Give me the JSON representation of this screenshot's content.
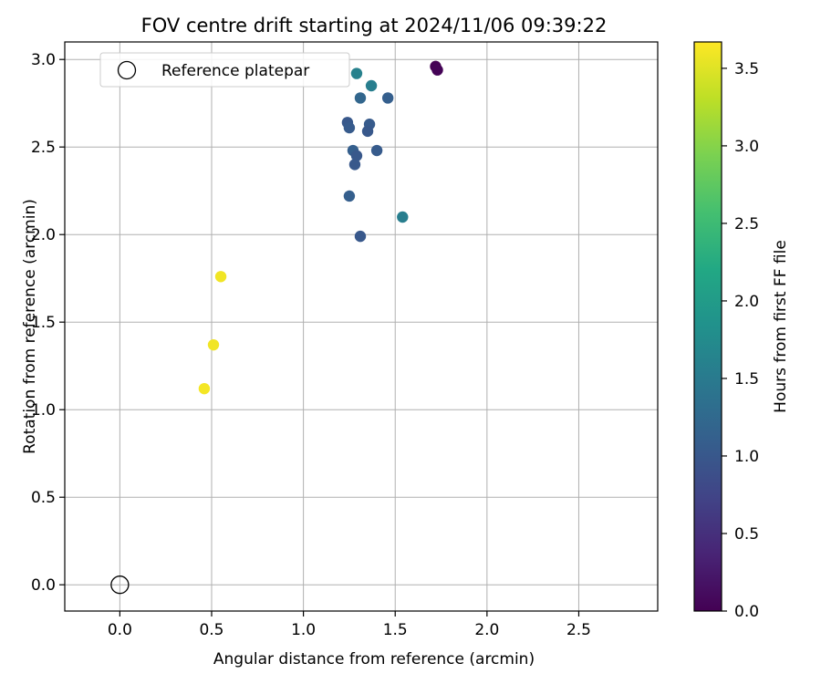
{
  "chart_data": {
    "type": "scatter",
    "title": "FOV centre drift starting at 2024/11/06 09:39:22",
    "xlabel": "Angular distance from reference (arcmin)",
    "ylabel": "Rotation from reference (arcmin)",
    "xlim": [
      -0.3,
      2.93
    ],
    "ylim": [
      -0.15,
      3.1
    ],
    "xticks": [
      0.0,
      0.5,
      1.0,
      1.5,
      2.0,
      2.5
    ],
    "yticks": [
      0.0,
      0.5,
      1.0,
      1.5,
      2.0,
      2.5,
      3.0
    ],
    "xtick_labels": [
      "0.0",
      "0.5",
      "1.0",
      "1.5",
      "2.0",
      "2.5"
    ],
    "ytick_labels": [
      "0.0",
      "0.5",
      "1.0",
      "1.5",
      "2.0",
      "2.5",
      "3.0"
    ],
    "grid": true,
    "legend": {
      "placement": "upper left",
      "entries": [
        {
          "label": "Reference platepar",
          "marker": "open-circle"
        }
      ]
    },
    "reference_point": {
      "x": 0.0,
      "y": 0.0
    },
    "colorbar": {
      "label": "Hours from first FF file",
      "colormap": "viridis",
      "range": [
        0.0,
        3.67
      ],
      "ticks": [
        0.0,
        0.5,
        1.0,
        1.5,
        2.0,
        2.5,
        3.0,
        3.5
      ],
      "tick_labels": [
        "0.0",
        "0.5",
        "1.0",
        "1.5",
        "2.0",
        "2.5",
        "3.0",
        "3.5"
      ]
    },
    "points": [
      {
        "x": 1.72,
        "y": 2.96,
        "c": 0.0
      },
      {
        "x": 1.73,
        "y": 2.94,
        "c": 0.02
      },
      {
        "x": 1.46,
        "y": 2.78,
        "c": 1.1
      },
      {
        "x": 1.31,
        "y": 2.78,
        "c": 1.2
      },
      {
        "x": 1.24,
        "y": 2.64,
        "c": 1.0
      },
      {
        "x": 1.25,
        "y": 2.61,
        "c": 1.05
      },
      {
        "x": 1.36,
        "y": 2.63,
        "c": 1.05
      },
      {
        "x": 1.35,
        "y": 2.59,
        "c": 1.0
      },
      {
        "x": 1.27,
        "y": 2.48,
        "c": 1.1
      },
      {
        "x": 1.4,
        "y": 2.48,
        "c": 1.05
      },
      {
        "x": 1.29,
        "y": 2.45,
        "c": 1.0
      },
      {
        "x": 1.28,
        "y": 2.4,
        "c": 1.0
      },
      {
        "x": 1.25,
        "y": 2.22,
        "c": 1.1
      },
      {
        "x": 1.31,
        "y": 1.99,
        "c": 1.0
      },
      {
        "x": 1.29,
        "y": 2.92,
        "c": 1.6
      },
      {
        "x": 1.37,
        "y": 2.85,
        "c": 1.55
      },
      {
        "x": 1.54,
        "y": 2.1,
        "c": 1.55
      },
      {
        "x": 0.55,
        "y": 1.76,
        "c": 3.6
      },
      {
        "x": 0.51,
        "y": 1.37,
        "c": 3.6
      },
      {
        "x": 0.46,
        "y": 1.12,
        "c": 3.62
      }
    ]
  }
}
